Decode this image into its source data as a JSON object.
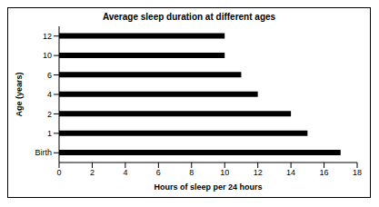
{
  "chart_data": {
    "type": "bar",
    "title": "Average sleep duration at different ages",
    "orientation": "horizontal",
    "x_label": "Hours of sleep per 24 hours",
    "y_label": "Age (years)",
    "categories": [
      "Birth",
      "1",
      "2",
      "4",
      "6",
      "10",
      "12"
    ],
    "values": [
      17,
      15,
      14,
      12,
      11,
      10,
      10
    ],
    "color": "#000000",
    "xlim": [
      0,
      18
    ],
    "xticks": [
      0,
      2,
      4,
      6,
      8,
      10,
      12,
      14,
      16,
      18
    ],
    "grid": false
  }
}
